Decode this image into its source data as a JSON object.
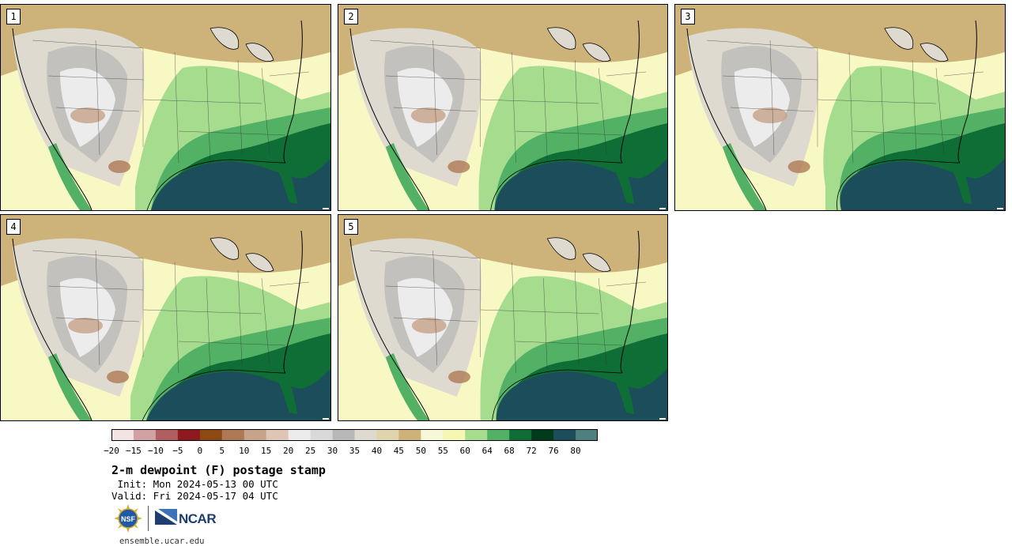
{
  "panels": [
    {
      "number": "1"
    },
    {
      "number": "2"
    },
    {
      "number": "3"
    },
    {
      "number": "4"
    },
    {
      "number": "5"
    }
  ],
  "map_field": "2-m dewpoint (F)",
  "colorbar": {
    "tick_labels": [
      "−20",
      "−15",
      "−10",
      "−5",
      "0",
      "5",
      "10",
      "15",
      "20",
      "25",
      "30",
      "35",
      "40",
      "45",
      "50",
      "55",
      "60",
      "64",
      "68",
      "72",
      "76",
      "80"
    ],
    "colors": [
      "#f3e4e4",
      "#d2a1a3",
      "#b05e61",
      "#8e1a1f",
      "#8c4a12",
      "#ad7954",
      "#c7a38a",
      "#dfc5b3",
      "#ececec",
      "#d9d9d9",
      "#b8b8b8",
      "#dedad0",
      "#e0d4ad",
      "#cdb37a",
      "#f7f8d8",
      "#f4f8b2",
      "#a6dc8e",
      "#52b165",
      "#0e6e35",
      "#003b1c",
      "#1b4e5a",
      "#4f8080"
    ]
  },
  "title": "2-m dewpoint (F) postage stamp",
  "init": " Init: Mon 2024-05-13 00 UTC",
  "valid": "Valid: Fri 2024-05-17 04 UTC",
  "logos": {
    "nsf": "NSF",
    "ncar": "NCAR"
  },
  "url": "ensemble.ucar.edu"
}
